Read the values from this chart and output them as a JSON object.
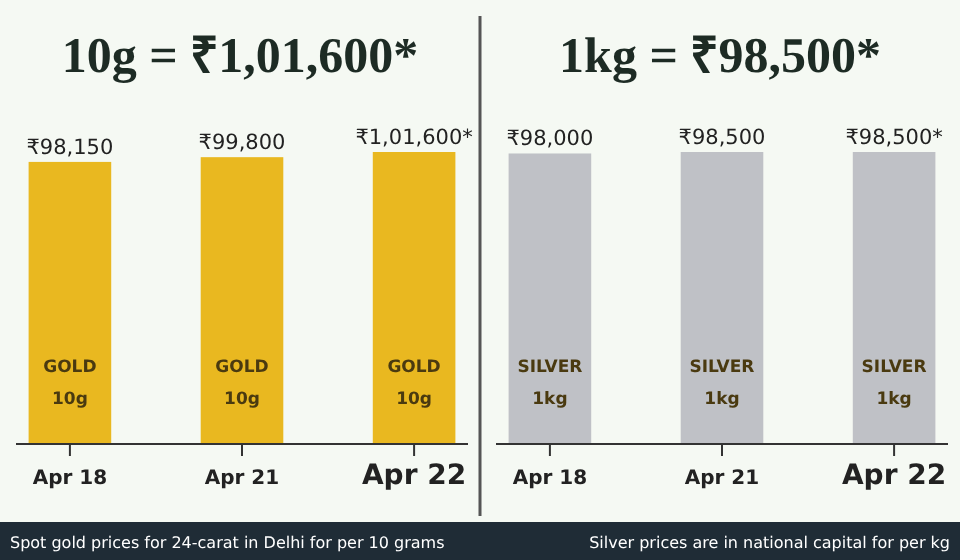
{
  "chart_data": [
    {
      "type": "bar",
      "title": "10g = ₹1,01,600*",
      "categories": [
        "Apr 18",
        "Apr 21",
        "Apr 22"
      ],
      "values": [
        98150,
        99800,
        101600
      ],
      "color": "#e9b820",
      "value_labels": [
        "₹98,150",
        "₹99,800",
        "₹1,01,600*"
      ],
      "annotations": [
        "GOLD 10g",
        "GOLD 10g",
        "GOLD 10g",
        "Spot gold prices for 24-carat in Delhi for per 10 grams"
      ]
    },
    {
      "type": "bar",
      "title": "1kg = ₹98,500*",
      "categories": [
        "Apr 18",
        "Apr 21",
        "Apr 22"
      ],
      "values": [
        98000,
        98500,
        98500
      ],
      "color": "#bfc1c6",
      "value_labels": [
        "₹98,000",
        "₹98,500",
        "₹98,500*"
      ],
      "annotations": [
        "SILVER 1kg",
        "SILVER 1kg",
        "SILVER 1kg",
        "Silver prices are in national capital for per kg"
      ]
    }
  ]
}
